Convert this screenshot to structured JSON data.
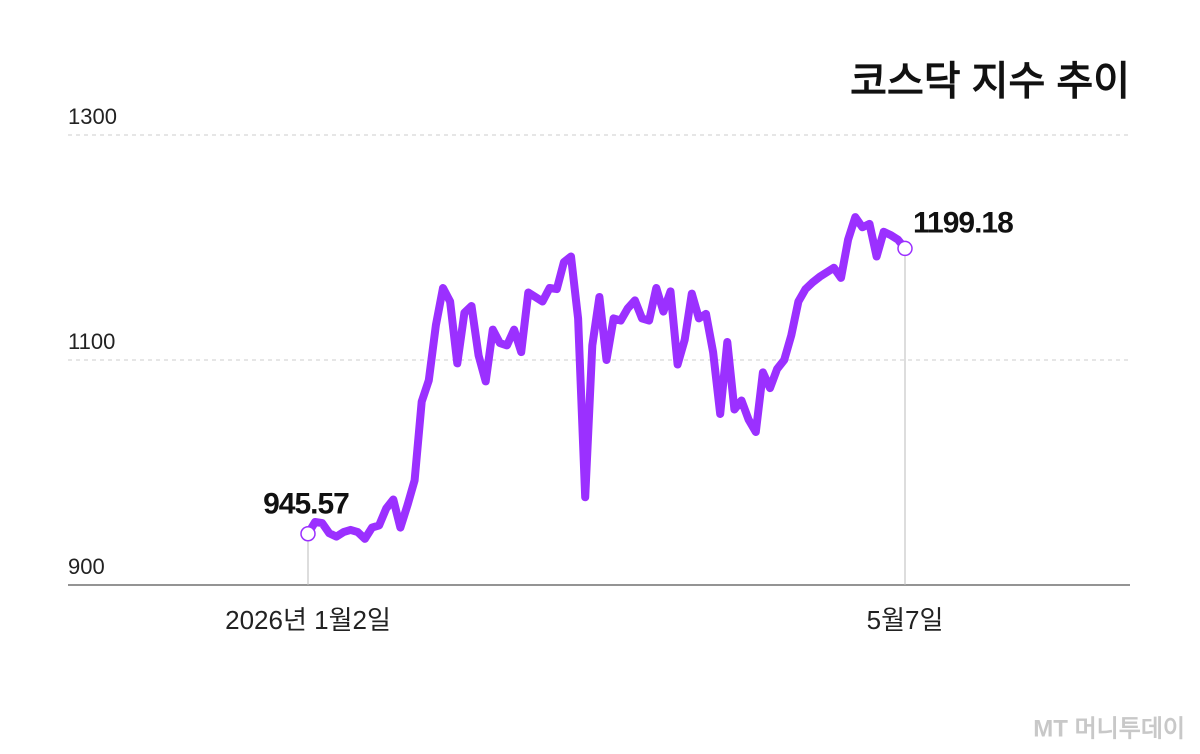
{
  "chart_data": {
    "type": "line",
    "title": "코스닥 지수 추이",
    "categories": [
      "2026년 1월2일",
      null,
      null,
      null,
      null,
      null,
      null,
      null,
      null,
      null,
      null,
      null,
      null,
      null,
      null,
      null,
      null,
      null,
      null,
      null,
      null,
      null,
      null,
      null,
      null,
      null,
      null,
      null,
      null,
      null,
      null,
      null,
      null,
      null,
      null,
      null,
      null,
      null,
      null,
      null,
      null,
      null,
      null,
      null,
      null,
      null,
      null,
      null,
      null,
      null,
      null,
      null,
      null,
      null,
      null,
      null,
      null,
      null,
      null,
      null,
      null,
      null,
      null,
      null,
      null,
      null,
      null,
      null,
      null,
      null,
      null,
      null,
      null,
      null,
      null,
      null,
      null,
      null,
      null,
      null,
      null,
      null,
      null,
      null,
      "5월7일"
    ],
    "values": [
      945.57,
      956,
      955,
      946,
      943,
      947,
      949,
      947,
      941,
      951,
      953,
      968,
      976,
      951,
      971,
      993,
      1063,
      1082,
      1131,
      1164,
      1152,
      1097,
      1142,
      1148,
      1104,
      1081,
      1127,
      1115,
      1113,
      1127,
      1107,
      1160,
      1156,
      1152,
      1164,
      1163,
      1187,
      1192,
      1137,
      978,
      1113,
      1156,
      1100,
      1137,
      1135,
      1146,
      1153,
      1137,
      1135,
      1164,
      1143,
      1161,
      1096,
      1118,
      1159,
      1137,
      1141,
      1107,
      1052,
      1116,
      1056,
      1064,
      1047,
      1036,
      1089,
      1075,
      1092,
      1100,
      1122,
      1152,
      1163,
      1169,
      1174,
      1178,
      1182,
      1173,
      1207,
      1227,
      1218,
      1221,
      1192,
      1214,
      1211,
      1207,
      1199.18
    ],
    "color": "#9b30ff",
    "ylim": [
      900,
      1300
    ],
    "yticks": [
      900,
      1100,
      1300
    ],
    "grid": true,
    "source": "MT 머니투데이"
  }
}
